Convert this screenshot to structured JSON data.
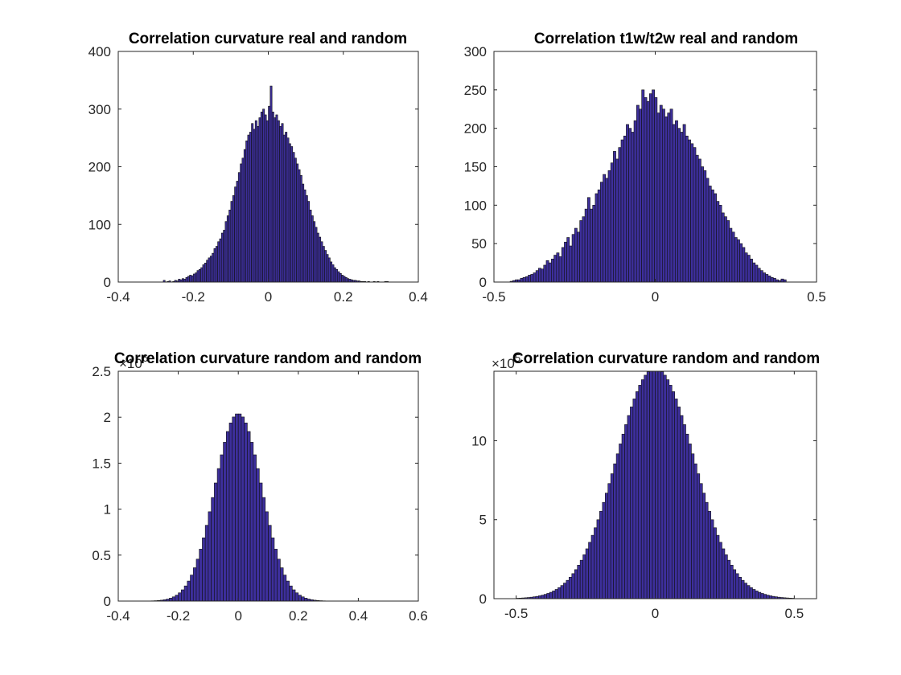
{
  "colors": {
    "bar_fill": "#3d2f9c",
    "bar_edge": "#111111",
    "axis": "#262626",
    "background": "#ffffff"
  },
  "chart_data": [
    {
      "type": "bar",
      "title": "Correlation curvature real and random",
      "xlabel": "",
      "ylabel": "",
      "xlim": [
        -0.4,
        0.4
      ],
      "ylim": [
        0,
        400
      ],
      "xticks": [
        -0.4,
        -0.2,
        0,
        0.2,
        0.4
      ],
      "xtick_labels": [
        "-0.4",
        "-0.2",
        "0",
        "0.2",
        "0.4"
      ],
      "yticks": [
        0,
        100,
        200,
        300,
        400
      ],
      "ytick_labels": [
        "0",
        "100",
        "200",
        "300",
        "400"
      ],
      "exponent_label": "",
      "bin_edges": {
        "start": -0.28,
        "width": 0.005
      },
      "values": [
        3,
        0,
        1,
        2,
        0,
        1,
        3,
        2,
        5,
        4,
        6,
        5,
        8,
        10,
        12,
        11,
        14,
        16,
        20,
        22,
        25,
        30,
        33,
        38,
        42,
        45,
        50,
        58,
        62,
        70,
        75,
        85,
        90,
        105,
        115,
        125,
        140,
        150,
        165,
        175,
        190,
        205,
        215,
        230,
        245,
        255,
        260,
        275,
        265,
        280,
        270,
        285,
        295,
        300,
        290,
        280,
        305,
        340,
        295,
        285,
        290,
        280,
        270,
        275,
        255,
        260,
        250,
        240,
        235,
        225,
        215,
        205,
        195,
        185,
        170,
        160,
        150,
        140,
        125,
        115,
        105,
        95,
        85,
        78,
        70,
        62,
        55,
        48,
        42,
        35,
        30,
        25,
        22,
        18,
        15,
        12,
        10,
        8,
        6,
        5,
        4,
        3,
        3,
        2,
        2,
        1,
        1,
        1,
        0,
        1,
        0,
        0,
        1,
        0,
        1,
        0,
        0,
        0,
        1,
        1
      ]
    },
    {
      "type": "bar",
      "title": "Correlation t1w/t2w real and random",
      "xlabel": "",
      "ylabel": "",
      "xlim": [
        -0.5,
        0.5
      ],
      "ylim": [
        0,
        300
      ],
      "xticks": [
        -0.5,
        0,
        0.5
      ],
      "xtick_labels": [
        "-0.5",
        "0",
        "0.5"
      ],
      "yticks": [
        0,
        50,
        100,
        150,
        200,
        250,
        300
      ],
      "ytick_labels": [
        "0",
        "50",
        "100",
        "150",
        "200",
        "250",
        "300"
      ],
      "exponent_label": "",
      "bin_edges": {
        "start": -0.45,
        "width": 0.008
      },
      "values": [
        1,
        2,
        3,
        3,
        5,
        6,
        7,
        9,
        10,
        12,
        15,
        18,
        17,
        22,
        28,
        25,
        30,
        35,
        38,
        33,
        45,
        52,
        58,
        47,
        62,
        70,
        65,
        80,
        85,
        95,
        110,
        95,
        100,
        115,
        120,
        130,
        140,
        135,
        145,
        155,
        170,
        160,
        175,
        185,
        190,
        205,
        200,
        195,
        210,
        230,
        225,
        250,
        240,
        235,
        245,
        250,
        240,
        220,
        230,
        225,
        215,
        220,
        225,
        205,
        210,
        200,
        195,
        205,
        190,
        185,
        180,
        175,
        165,
        160,
        150,
        145,
        135,
        125,
        120,
        115,
        105,
        100,
        90,
        85,
        80,
        70,
        65,
        58,
        55,
        50,
        45,
        38,
        35,
        30,
        25,
        22,
        18,
        15,
        12,
        10,
        8,
        6,
        5,
        3,
        2,
        4,
        3
      ]
    },
    {
      "type": "bar",
      "title": "Correlation curvature random and random",
      "xlabel": "",
      "ylabel": "",
      "xlim": [
        -0.4,
        0.6
      ],
      "ylim": [
        0,
        2.5
      ],
      "xticks": [
        -0.4,
        -0.2,
        0,
        0.2,
        0.4,
        0.6
      ],
      "xtick_labels": [
        "-0.4",
        "-0.2",
        "0",
        "0.2",
        "0.4",
        "0.6"
      ],
      "yticks": [
        0,
        0.5,
        1,
        1.5,
        2,
        2.5
      ],
      "ytick_labels": [
        "0",
        "0.5",
        "1",
        "1.5",
        "2",
        "2.5"
      ],
      "exponent_label": "×10",
      "exponent_power": "6",
      "bin_edges": {
        "start": -0.4,
        "width": 0.01
      },
      "gaussian": {
        "mean": 0.0,
        "sd": 0.078,
        "peak": 2.04,
        "tail_cutoff": 0.55
      }
    },
    {
      "type": "bar",
      "title": "Correlation curvature random and random",
      "xlabel": "",
      "ylabel": "",
      "xlim": [
        -0.58,
        0.58
      ],
      "ylim": [
        0,
        14.4
      ],
      "xticks": [
        -0.5,
        0,
        0.5
      ],
      "xtick_labels": [
        "-0.5",
        "0",
        "0.5"
      ],
      "yticks": [
        0,
        5,
        10
      ],
      "ytick_labels": [
        "0",
        "5",
        "10"
      ],
      "exponent_label": "×10",
      "exponent_power": "5",
      "bin_edges": {
        "start": -0.5,
        "width": 0.01
      },
      "gaussian": {
        "mean": 0.0,
        "sd": 0.14,
        "peak": 14.6,
        "tail_cutoff": 0.5
      }
    }
  ]
}
